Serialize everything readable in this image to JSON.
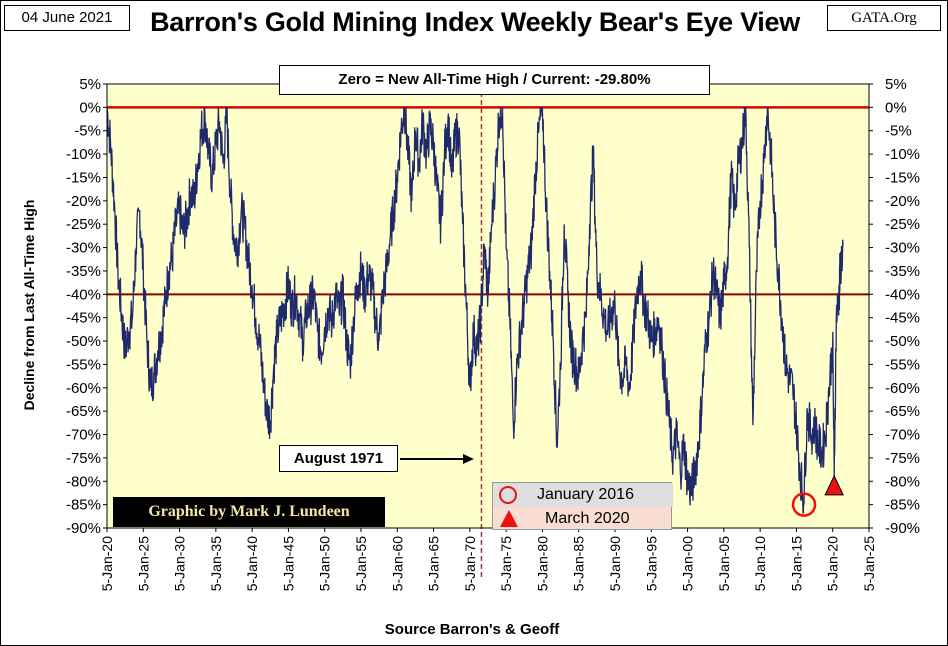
{
  "header": {
    "date": "04 June 2021",
    "title": "Barron's Gold Mining Index Weekly Bear's Eye View",
    "source_site": "GATA.Org"
  },
  "annotations": {
    "current_box": "Zero = New All-Time High / Current: -29.80%",
    "august_1971": "August 1971",
    "credit": "Graphic by Mark J. Lundeen",
    "legend_circle": "January 2016",
    "legend_triangle": "March 2020"
  },
  "colors": {
    "plot_bg": "#ffffcc",
    "series": "#1f2a6b",
    "zero_line": "#dd0000",
    "minus40_line": "#8b0000",
    "vline": "#993333",
    "marker": "#ee1111",
    "legend_bg": "#f9dcd2",
    "credit_bg": "#000000",
    "credit_text": "#f5e6a8"
  },
  "chart_data": {
    "type": "line",
    "title": "Barron's Gold Mining Index Weekly Bear's Eye View",
    "xlabel": "Source Barron's & Geoff",
    "ylabel": "Decline from Last All-Time High",
    "ylim": [
      -90,
      5
    ],
    "xlim": [
      1920,
      2025
    ],
    "y_ticks": [
      "5%",
      "0%",
      "-5%",
      "-10%",
      "-15%",
      "-20%",
      "-25%",
      "-30%",
      "-35%",
      "-40%",
      "-45%",
      "-50%",
      "-55%",
      "-60%",
      "-65%",
      "-70%",
      "-75%",
      "-80%",
      "-85%",
      "-90%"
    ],
    "x_ticks": [
      "5-Jan-20",
      "5-Jan-25",
      "5-Jan-30",
      "5-Jan-35",
      "5-Jan-40",
      "5-Jan-45",
      "5-Jan-50",
      "5-Jan-55",
      "5-Jan-60",
      "5-Jan-65",
      "5-Jan-70",
      "5-Jan-75",
      "5-Jan-80",
      "5-Jan-85",
      "5-Jan-90",
      "5-Jan-95",
      "5-Jan-00",
      "5-Jan-05",
      "5-Jan-10",
      "5-Jan-15",
      "5-Jan-20",
      "5-Jan-25"
    ],
    "reference_lines": [
      {
        "y": 0,
        "color": "red"
      },
      {
        "y": -40,
        "color": "darkred"
      }
    ],
    "vertical_line": {
      "x": 1971.6,
      "label": "August 1971"
    },
    "markers": [
      {
        "shape": "circle",
        "x": 2016.05,
        "y": -85,
        "label": "January 2016"
      },
      {
        "shape": "triangle",
        "x": 2020.2,
        "y": -81,
        "label": "March 2020"
      }
    ],
    "grid": false,
    "series": [
      {
        "values": [
          [
            1920.0,
            0
          ],
          [
            1920.5,
            -8
          ],
          [
            1921.0,
            -20
          ],
          [
            1921.5,
            -35
          ],
          [
            1922.0,
            -44
          ],
          [
            1922.5,
            -52
          ],
          [
            1923.0,
            -48
          ],
          [
            1923.5,
            -45
          ],
          [
            1924.0,
            -30
          ],
          [
            1924.5,
            -22
          ],
          [
            1925.0,
            -35
          ],
          [
            1925.5,
            -50
          ],
          [
            1926.0,
            -60
          ],
          [
            1926.5,
            -57
          ],
          [
            1927.0,
            -52
          ],
          [
            1927.5,
            -48
          ],
          [
            1928.0,
            -42
          ],
          [
            1928.5,
            -35
          ],
          [
            1929.0,
            -32
          ],
          [
            1929.5,
            -25
          ],
          [
            1930.0,
            -22
          ],
          [
            1930.5,
            -27
          ],
          [
            1931.0,
            -24
          ],
          [
            1931.5,
            -18
          ],
          [
            1932.0,
            -20
          ],
          [
            1932.5,
            -12
          ],
          [
            1933.0,
            -5
          ],
          [
            1933.5,
            -2
          ],
          [
            1934.0,
            -10
          ],
          [
            1934.5,
            -15
          ],
          [
            1935.0,
            -8
          ],
          [
            1935.5,
            -3
          ],
          [
            1936.0,
            -12
          ],
          [
            1936.5,
            -2
          ],
          [
            1937.0,
            -18
          ],
          [
            1937.5,
            -28
          ],
          [
            1938.0,
            -30
          ],
          [
            1938.5,
            -22
          ],
          [
            1939.0,
            -26
          ],
          [
            1939.5,
            -33
          ],
          [
            1940.0,
            -38
          ],
          [
            1940.5,
            -45
          ],
          [
            1941.0,
            -50
          ],
          [
            1941.5,
            -58
          ],
          [
            1942.0,
            -65
          ],
          [
            1942.5,
            -67
          ],
          [
            1943.0,
            -55
          ],
          [
            1943.5,
            -48
          ],
          [
            1944.0,
            -45
          ],
          [
            1944.5,
            -42
          ],
          [
            1945.0,
            -38
          ],
          [
            1945.5,
            -43
          ],
          [
            1946.0,
            -40
          ],
          [
            1946.5,
            -45
          ],
          [
            1947.0,
            -50
          ],
          [
            1947.5,
            -44
          ],
          [
            1948.0,
            -42
          ],
          [
            1948.5,
            -40
          ],
          [
            1949.0,
            -48
          ],
          [
            1949.5,
            -52
          ],
          [
            1950.0,
            -47
          ],
          [
            1950.5,
            -43
          ],
          [
            1951.0,
            -46
          ],
          [
            1951.5,
            -40
          ],
          [
            1952.0,
            -44
          ],
          [
            1952.5,
            -40
          ],
          [
            1953.0,
            -50
          ],
          [
            1953.5,
            -55
          ],
          [
            1954.0,
            -45
          ],
          [
            1954.5,
            -38
          ],
          [
            1955.0,
            -35
          ],
          [
            1955.5,
            -40
          ],
          [
            1956.0,
            -36
          ],
          [
            1956.5,
            -38
          ],
          [
            1957.0,
            -45
          ],
          [
            1957.5,
            -50
          ],
          [
            1958.0,
            -40
          ],
          [
            1958.5,
            -35
          ],
          [
            1959.0,
            -28
          ],
          [
            1959.5,
            -22
          ],
          [
            1960.0,
            -15
          ],
          [
            1960.5,
            -5
          ],
          [
            1961.0,
            0
          ],
          [
            1961.5,
            -10
          ],
          [
            1962.0,
            -20
          ],
          [
            1962.5,
            -5
          ],
          [
            1963.0,
            -12
          ],
          [
            1963.5,
            -3
          ],
          [
            1964.0,
            -10
          ],
          [
            1964.5,
            -4
          ],
          [
            1965.0,
            -8
          ],
          [
            1965.5,
            -18
          ],
          [
            1966.0,
            -25
          ],
          [
            1966.5,
            -10
          ],
          [
            1967.0,
            -2
          ],
          [
            1967.5,
            -15
          ],
          [
            1968.0,
            -6
          ],
          [
            1968.5,
            -5
          ],
          [
            1969.0,
            -25
          ],
          [
            1969.5,
            -42
          ],
          [
            1970.0,
            -60
          ],
          [
            1970.5,
            -48
          ],
          [
            1971.0,
            -52
          ],
          [
            1971.5,
            -45
          ],
          [
            1972.0,
            -30
          ],
          [
            1972.5,
            -40
          ],
          [
            1973.0,
            -25
          ],
          [
            1973.5,
            -15
          ],
          [
            1974.0,
            -2
          ],
          [
            1974.5,
            0
          ],
          [
            1975.0,
            -30
          ],
          [
            1975.5,
            -45
          ],
          [
            1976.0,
            -68
          ],
          [
            1976.5,
            -55
          ],
          [
            1977.0,
            -48
          ],
          [
            1977.5,
            -42
          ],
          [
            1978.0,
            -35
          ],
          [
            1978.5,
            -30
          ],
          [
            1979.0,
            -15
          ],
          [
            1979.5,
            -5
          ],
          [
            1980.0,
            0
          ],
          [
            1980.5,
            -20
          ],
          [
            1981.0,
            -35
          ],
          [
            1981.5,
            -50
          ],
          [
            1982.0,
            -72
          ],
          [
            1982.5,
            -55
          ],
          [
            1983.0,
            -25
          ],
          [
            1983.5,
            -40
          ],
          [
            1984.0,
            -52
          ],
          [
            1984.5,
            -55
          ],
          [
            1985.0,
            -58
          ],
          [
            1985.5,
            -50
          ],
          [
            1986.0,
            -45
          ],
          [
            1986.5,
            -25
          ],
          [
            1987.0,
            -10
          ],
          [
            1987.5,
            -35
          ],
          [
            1988.0,
            -40
          ],
          [
            1988.5,
            -45
          ],
          [
            1989.0,
            -48
          ],
          [
            1989.5,
            -44
          ],
          [
            1990.0,
            -42
          ],
          [
            1990.5,
            -55
          ],
          [
            1991.0,
            -58
          ],
          [
            1991.5,
            -55
          ],
          [
            1992.0,
            -60
          ],
          [
            1992.5,
            -50
          ],
          [
            1993.0,
            -40
          ],
          [
            1993.5,
            -35
          ],
          [
            1994.0,
            -42
          ],
          [
            1994.5,
            -45
          ],
          [
            1995.0,
            -50
          ],
          [
            1995.5,
            -48
          ],
          [
            1996.0,
            -45
          ],
          [
            1996.5,
            -52
          ],
          [
            1997.0,
            -60
          ],
          [
            1997.5,
            -68
          ],
          [
            1998.0,
            -75
          ],
          [
            1998.5,
            -70
          ],
          [
            1999.0,
            -78
          ],
          [
            1999.5,
            -72
          ],
          [
            2000.0,
            -80
          ],
          [
            2000.5,
            -82
          ],
          [
            2001.0,
            -78
          ],
          [
            2001.5,
            -72
          ],
          [
            2002.0,
            -62
          ],
          [
            2002.5,
            -50
          ],
          [
            2003.0,
            -45
          ],
          [
            2003.5,
            -35
          ],
          [
            2004.0,
            -40
          ],
          [
            2004.5,
            -45
          ],
          [
            2005.0,
            -38
          ],
          [
            2005.5,
            -32
          ],
          [
            2006.0,
            -15
          ],
          [
            2006.5,
            -22
          ],
          [
            2007.0,
            -12
          ],
          [
            2007.5,
            -8
          ],
          [
            2008.0,
            0
          ],
          [
            2008.5,
            -30
          ],
          [
            2009.0,
            -68
          ],
          [
            2009.5,
            -35
          ],
          [
            2010.0,
            -20
          ],
          [
            2010.5,
            -12
          ],
          [
            2011.0,
            0
          ],
          [
            2011.5,
            -10
          ],
          [
            2012.0,
            -25
          ],
          [
            2012.5,
            -35
          ],
          [
            2013.0,
            -45
          ],
          [
            2013.5,
            -55
          ],
          [
            2014.0,
            -58
          ],
          [
            2014.5,
            -60
          ],
          [
            2015.0,
            -68
          ],
          [
            2015.5,
            -78
          ],
          [
            2016.0,
            -84
          ],
          [
            2016.5,
            -65
          ],
          [
            2017.0,
            -70
          ],
          [
            2017.5,
            -68
          ],
          [
            2018.0,
            -72
          ],
          [
            2018.5,
            -74
          ],
          [
            2019.0,
            -70
          ],
          [
            2019.5,
            -60
          ],
          [
            2020.0,
            -50
          ],
          [
            2020.2,
            -79
          ],
          [
            2020.5,
            -45
          ],
          [
            2020.9,
            -40
          ],
          [
            2021.0,
            -35
          ],
          [
            2021.42,
            -29.8
          ]
        ]
      }
    ]
  }
}
